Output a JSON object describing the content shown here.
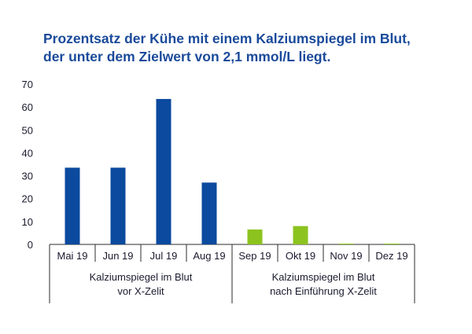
{
  "chart_data": {
    "type": "bar",
    "title_lines": [
      "Prozentsatz der Kühe mit einem Kalziumspiegel im Blut,",
      "der unter dem Zielwert von 2,1 mmol/L liegt."
    ],
    "categories": [
      "Mai 19",
      "Jun 19",
      "Jul 19",
      "Aug 19",
      "Sep 19",
      "Okt 19",
      "Nov 19",
      "Dez 19"
    ],
    "values": [
      33.5,
      33.5,
      63.5,
      27,
      6.5,
      8,
      0.3,
      0.3
    ],
    "bar_colors": [
      "#0b4a9e",
      "#0b4a9e",
      "#0b4a9e",
      "#0b4a9e",
      "#8cc31e",
      "#8cc31e",
      "#8cc31e",
      "#8cc31e"
    ],
    "ylim": [
      0,
      70
    ],
    "yticks": [
      0,
      10,
      20,
      30,
      40,
      50,
      60,
      70
    ],
    "grid": false,
    "groups": [
      {
        "lines": [
          "Kalziumspiegel im Blut",
          "vor X-Zelit"
        ],
        "start": 0,
        "end": 3
      },
      {
        "lines": [
          "Kalziumspiegel im Blut",
          "nach Einführung X-Zelit"
        ],
        "start": 4,
        "end": 7
      }
    ]
  }
}
